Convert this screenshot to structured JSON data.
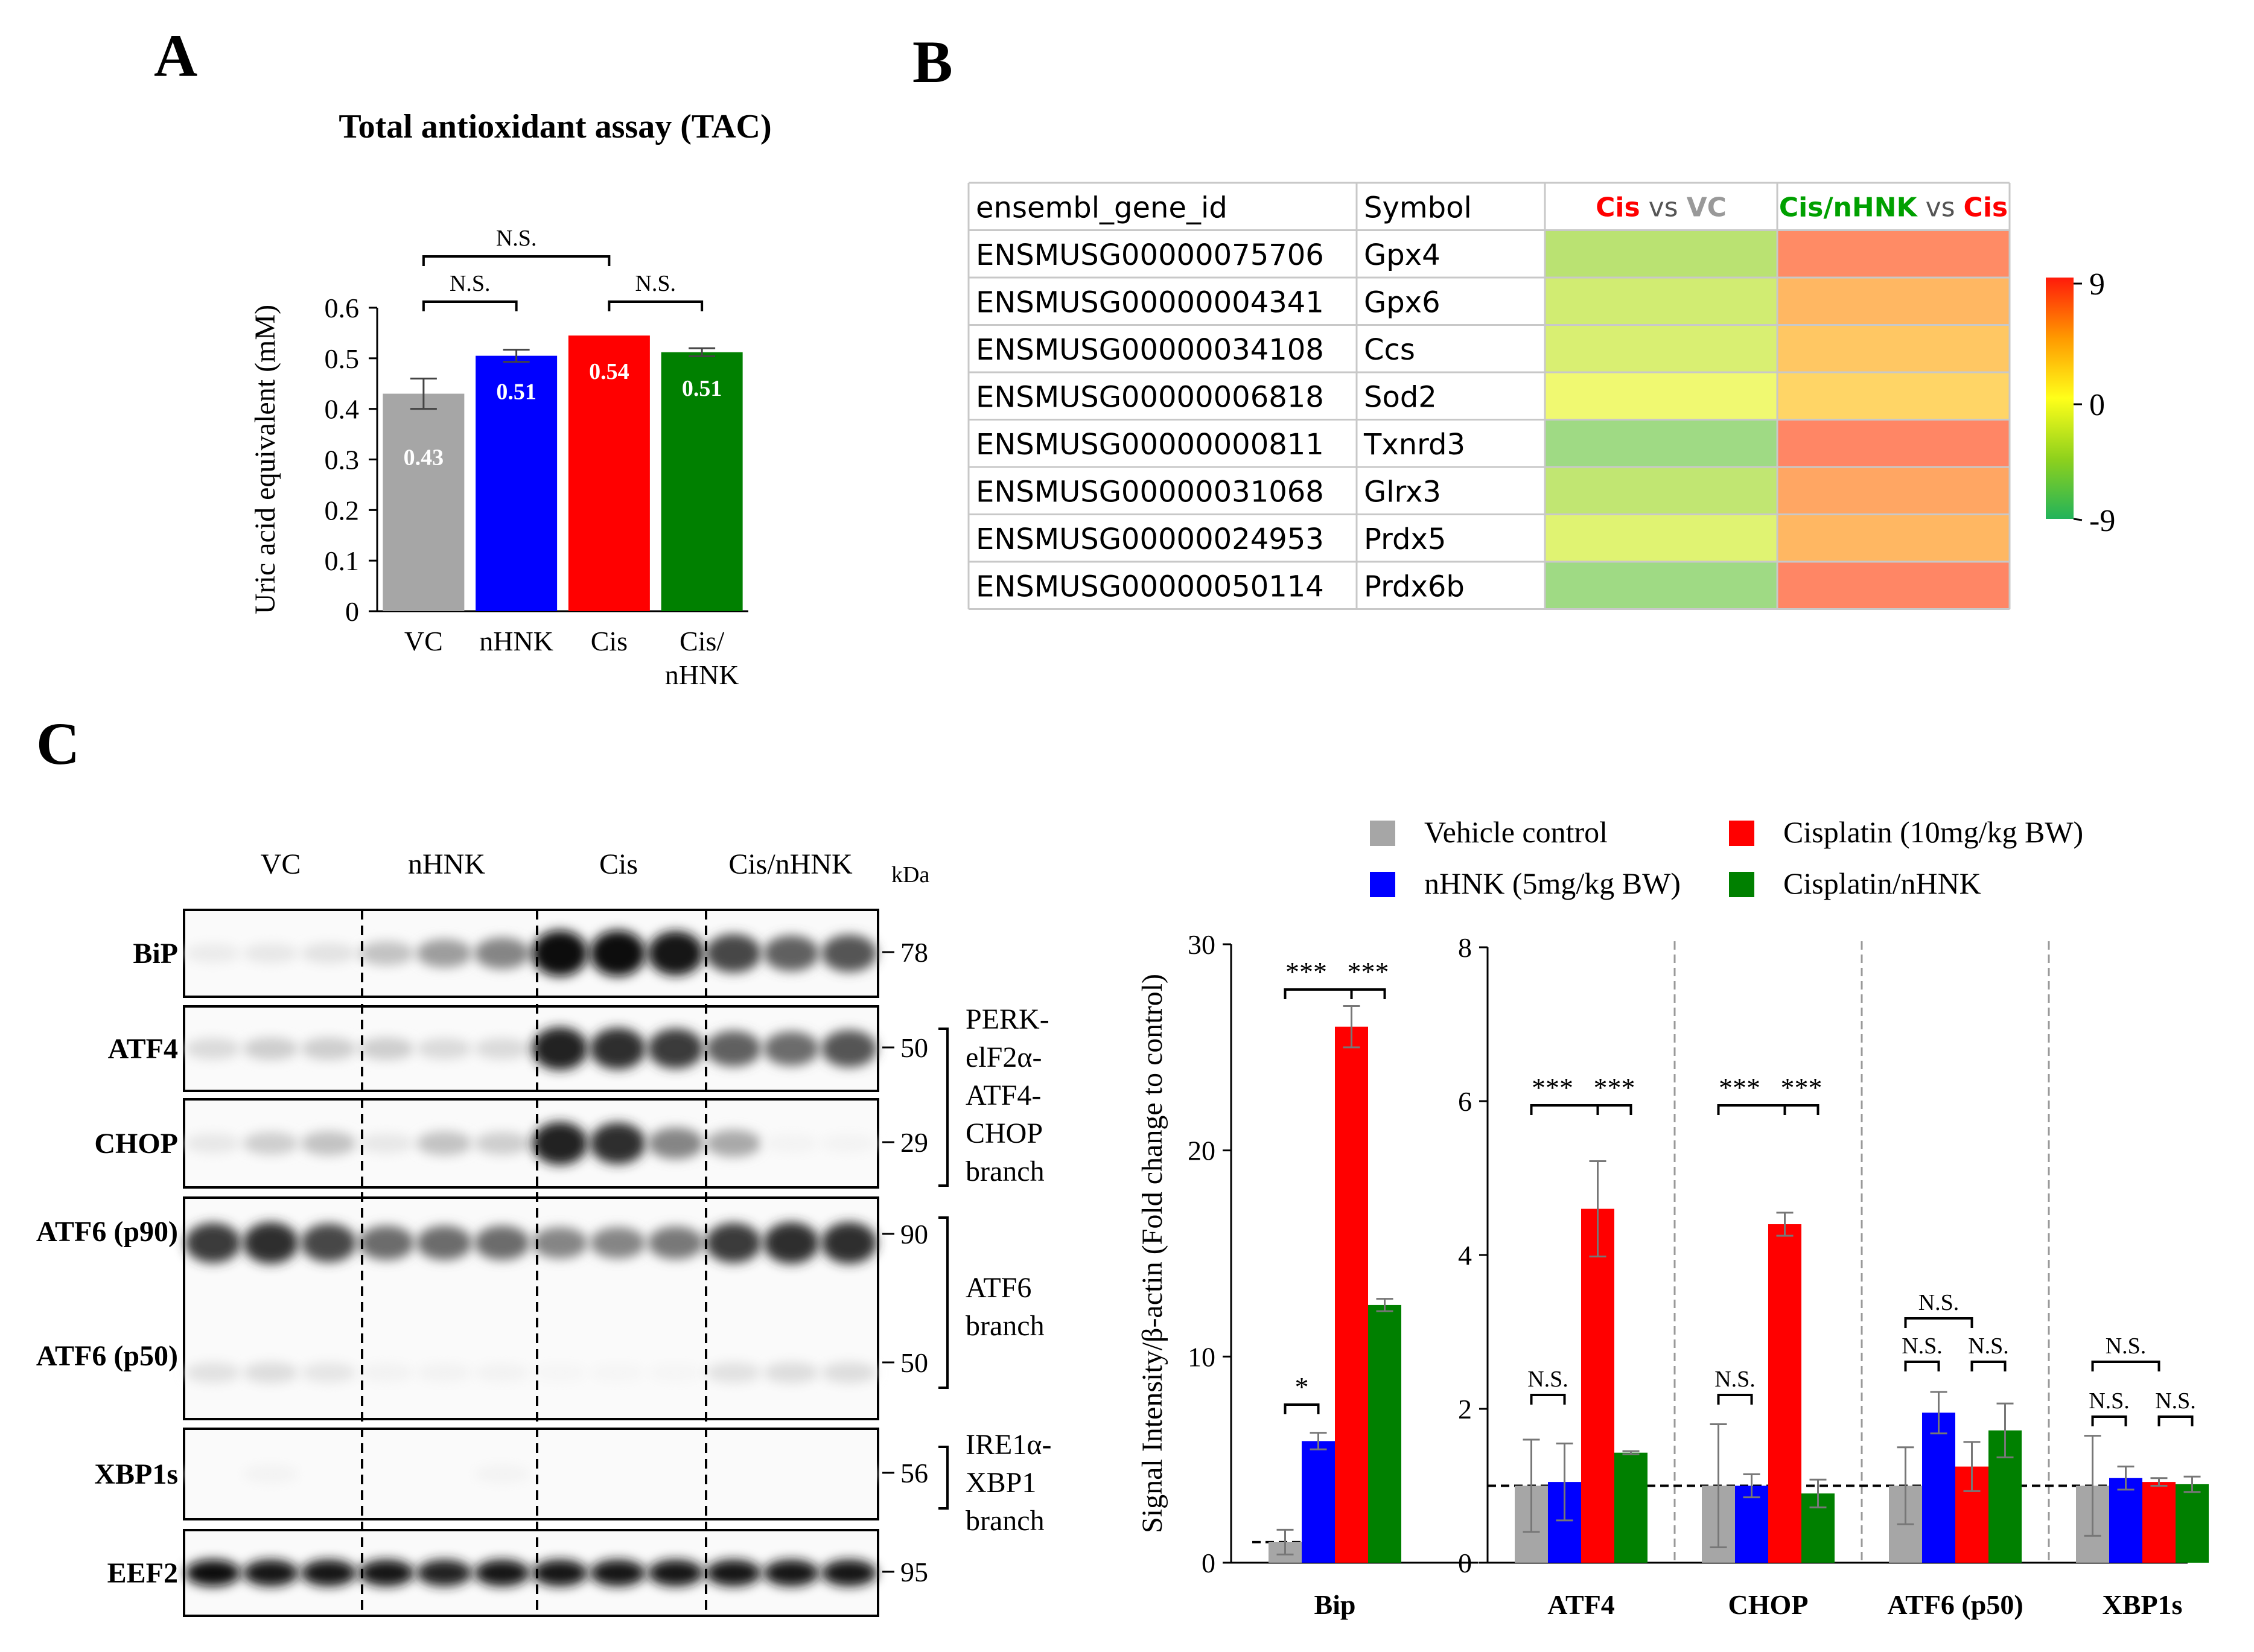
{
  "panels": {
    "a": "A",
    "b": "B",
    "c": "C"
  },
  "colors": {
    "gray": "#a6a6a6",
    "blue": "#0000ff",
    "red": "#ff0000",
    "green": "#008000"
  },
  "chart_data": [
    {
      "id": "tac",
      "type": "bar",
      "title": "Total antioxidant assay (TAC)",
      "ylabel": "Uric acid equivalent (mM)",
      "ylim": [
        0,
        0.6
      ],
      "yticks": [
        "0",
        "0.1",
        "0.2",
        "0.3",
        "0.4",
        "0.5",
        "0.6"
      ],
      "categories": [
        [
          "VC"
        ],
        [
          "nHNK"
        ],
        [
          "Cis"
        ],
        [
          "Cis/",
          "nHNK"
        ]
      ],
      "values": [
        0.43,
        0.505,
        0.545,
        0.512
      ],
      "errors": [
        0.03,
        0.012,
        0.0,
        0.008
      ],
      "value_labels": [
        "0.43",
        "0.51",
        "0.54",
        "0.51"
      ],
      "colors": [
        "#a6a6a6",
        "#0000ff",
        "#ff0000",
        "#008000"
      ],
      "annotations": [
        {
          "from": 0,
          "to": 1,
          "text": "N.S."
        },
        {
          "from": 0,
          "to": 2,
          "text": "N.S."
        },
        {
          "from": 2,
          "to": 3,
          "text": "N.S."
        }
      ]
    },
    {
      "id": "heatmap",
      "type": "heatmap",
      "headers": [
        "ensembl_gene_id",
        "Symbol"
      ],
      "comparison_headers": [
        [
          {
            "text": "Cis",
            "color": "#ff0000"
          },
          {
            "text": " vs ",
            "color": "#555555"
          },
          {
            "text": "VC",
            "color": "#999999"
          }
        ],
        [
          {
            "text": "Cis/nHNK",
            "color": "#00a000"
          },
          {
            "text": " vs ",
            "color": "#555555"
          },
          {
            "text": "Cis",
            "color": "#ff0000"
          }
        ]
      ],
      "rows": [
        {
          "id": "ENSMUSG00000075706",
          "symbol": "Gpx4",
          "values": [
            -4.5,
            7.5
          ]
        },
        {
          "id": "ENSMUSG00000004341",
          "symbol": "Gpx6",
          "values": [
            -3,
            5
          ]
        },
        {
          "id": "ENSMUSG00000034108",
          "symbol": "Ccs",
          "values": [
            -2.5,
            4
          ]
        },
        {
          "id": "ENSMUSG00000006818",
          "symbol": "Sod2",
          "values": [
            -1,
            3
          ]
        },
        {
          "id": "ENSMUSG00000000811",
          "symbol": "Txnrd3",
          "values": [
            -6.5,
            7.8
          ]
        },
        {
          "id": "ENSMUSG00000031068",
          "symbol": "Glrx3",
          "values": [
            -4,
            6
          ]
        },
        {
          "id": "ENSMUSG00000024953",
          "symbol": "Prdx5",
          "values": [
            -2,
            5
          ]
        },
        {
          "id": "ENSMUSG00000050114",
          "symbol": "Prdx6b",
          "values": [
            -6.5,
            7.8
          ]
        }
      ],
      "scale": {
        "min": -9,
        "max": 9,
        "labels": [
          "9",
          "0",
          "-9"
        ]
      }
    },
    {
      "id": "western",
      "type": "table",
      "groups": [
        "VC",
        "nHNK",
        "Cis",
        "Cis/nHNK"
      ],
      "kda_label": "kDa",
      "blots": [
        {
          "label": "BiP",
          "intensities": [
            0.08,
            0.1,
            0.12,
            0.25,
            0.4,
            0.5,
            1.0,
            1.0,
            0.95,
            0.75,
            0.65,
            0.7
          ],
          "kda": [
            "78"
          ]
        },
        {
          "label": "ATF4",
          "intensities": [
            0.15,
            0.2,
            0.2,
            0.2,
            0.15,
            0.15,
            0.9,
            0.85,
            0.8,
            0.65,
            0.6,
            0.7
          ],
          "kda": [
            "50"
          ]
        },
        {
          "label": "CHOP",
          "intensities": [
            0.1,
            0.2,
            0.25,
            0.1,
            0.25,
            0.2,
            0.9,
            0.85,
            0.5,
            0.35,
            0.05,
            0.05
          ],
          "kda": [
            "29"
          ]
        },
        {
          "label": "ATF6 (p90)",
          "label2": "ATF6 (p50)",
          "intensities": [
            0.8,
            0.85,
            0.75,
            0.6,
            0.6,
            0.6,
            0.5,
            0.5,
            0.55,
            0.8,
            0.85,
            0.85
          ],
          "kda": [
            "90",
            "50"
          ]
        },
        {
          "label": "XBP1s",
          "intensities": [
            0.02,
            0.05,
            0.02,
            0.02,
            0.02,
            0.05,
            0.02,
            0.02,
            0.02,
            0.02,
            0.02,
            0.02
          ],
          "kda": [
            "56"
          ]
        },
        {
          "label": "EEF2",
          "intensities": [
            1.0,
            0.95,
            0.95,
            0.95,
            0.9,
            0.95,
            0.95,
            0.95,
            0.95,
            0.95,
            0.95,
            0.95
          ],
          "kda": [
            "95"
          ]
        }
      ],
      "branches": [
        {
          "lines": [
            "PERK-",
            "elF2α-",
            "ATF4-",
            "CHOP",
            "branch"
          ]
        },
        {
          "lines": [
            "ATF6",
            "branch"
          ]
        },
        {
          "lines": [
            "IRE1α-",
            "XBP1",
            "branch"
          ]
        }
      ]
    },
    {
      "id": "quant",
      "type": "bar",
      "ylabel": "Signal Intensity/β-actin (Fold change to control)",
      "legend": [
        {
          "label": "Vehicle control",
          "color": "#a6a6a6"
        },
        {
          "label": "nHNK (5mg/kg BW)",
          "color": "#0000ff"
        },
        {
          "label": "Cisplatin (10mg/kg BW)",
          "color": "#ff0000"
        },
        {
          "label": "Cisplatin/nHNK",
          "color": "#008000"
        }
      ],
      "left_axis": {
        "ylim": [
          0,
          30
        ],
        "ticks": [
          "0",
          "10",
          "20",
          "30"
        ]
      },
      "right_axis": {
        "ylim": [
          0,
          8
        ],
        "ticks": [
          "0",
          "2",
          "4",
          "6",
          "8"
        ]
      },
      "categories": [
        "Bip",
        "ATF4",
        "CHOP",
        "ATF6 (p50)",
        "XBP1s"
      ],
      "series_values": [
        [
          1.0,
          5.9,
          26.0,
          12.5
        ],
        [
          1.0,
          1.05,
          4.6,
          1.43
        ],
        [
          1.0,
          1.0,
          4.4,
          0.9
        ],
        [
          1.0,
          1.95,
          1.25,
          1.72
        ],
        [
          1.0,
          1.1,
          1.05,
          1.02
        ]
      ],
      "errors": [
        [
          0.6,
          0.4,
          1.0,
          0.3
        ],
        [
          0.6,
          0.5,
          0.62,
          0.02
        ],
        [
          0.8,
          0.15,
          0.15,
          0.18
        ],
        [
          0.5,
          0.27,
          0.32,
          0.35
        ],
        [
          0.65,
          0.15,
          0.05,
          0.1
        ]
      ],
      "annotations": [
        {
          "cat": 0,
          "from": 0,
          "to": 1,
          "text": "*"
        },
        {
          "cat": 0,
          "from": 0,
          "to": 2,
          "text": "***"
        },
        {
          "cat": 0,
          "from": 2,
          "to": 3,
          "text": "***"
        },
        {
          "cat": 1,
          "from": 0,
          "to": 1,
          "text": "N.S."
        },
        {
          "cat": 1,
          "from": 0,
          "to": 2,
          "text": "***"
        },
        {
          "cat": 1,
          "from": 2,
          "to": 3,
          "text": "***"
        },
        {
          "cat": 2,
          "from": 0,
          "to": 1,
          "text": "N.S."
        },
        {
          "cat": 2,
          "from": 0,
          "to": 2,
          "text": "***"
        },
        {
          "cat": 2,
          "from": 2,
          "to": 3,
          "text": "***"
        },
        {
          "cat": 3,
          "from": 0,
          "to": 1,
          "text": "N.S."
        },
        {
          "cat": 3,
          "from": 0,
          "to": 2,
          "text": "N.S."
        },
        {
          "cat": 3,
          "from": 2,
          "to": 3,
          "text": "N.S."
        },
        {
          "cat": 4,
          "from": 0,
          "to": 1,
          "text": "N.S."
        },
        {
          "cat": 4,
          "from": 0,
          "to": 2,
          "text": "N.S."
        },
        {
          "cat": 4,
          "from": 2,
          "to": 3,
          "text": "N.S."
        }
      ]
    }
  ]
}
